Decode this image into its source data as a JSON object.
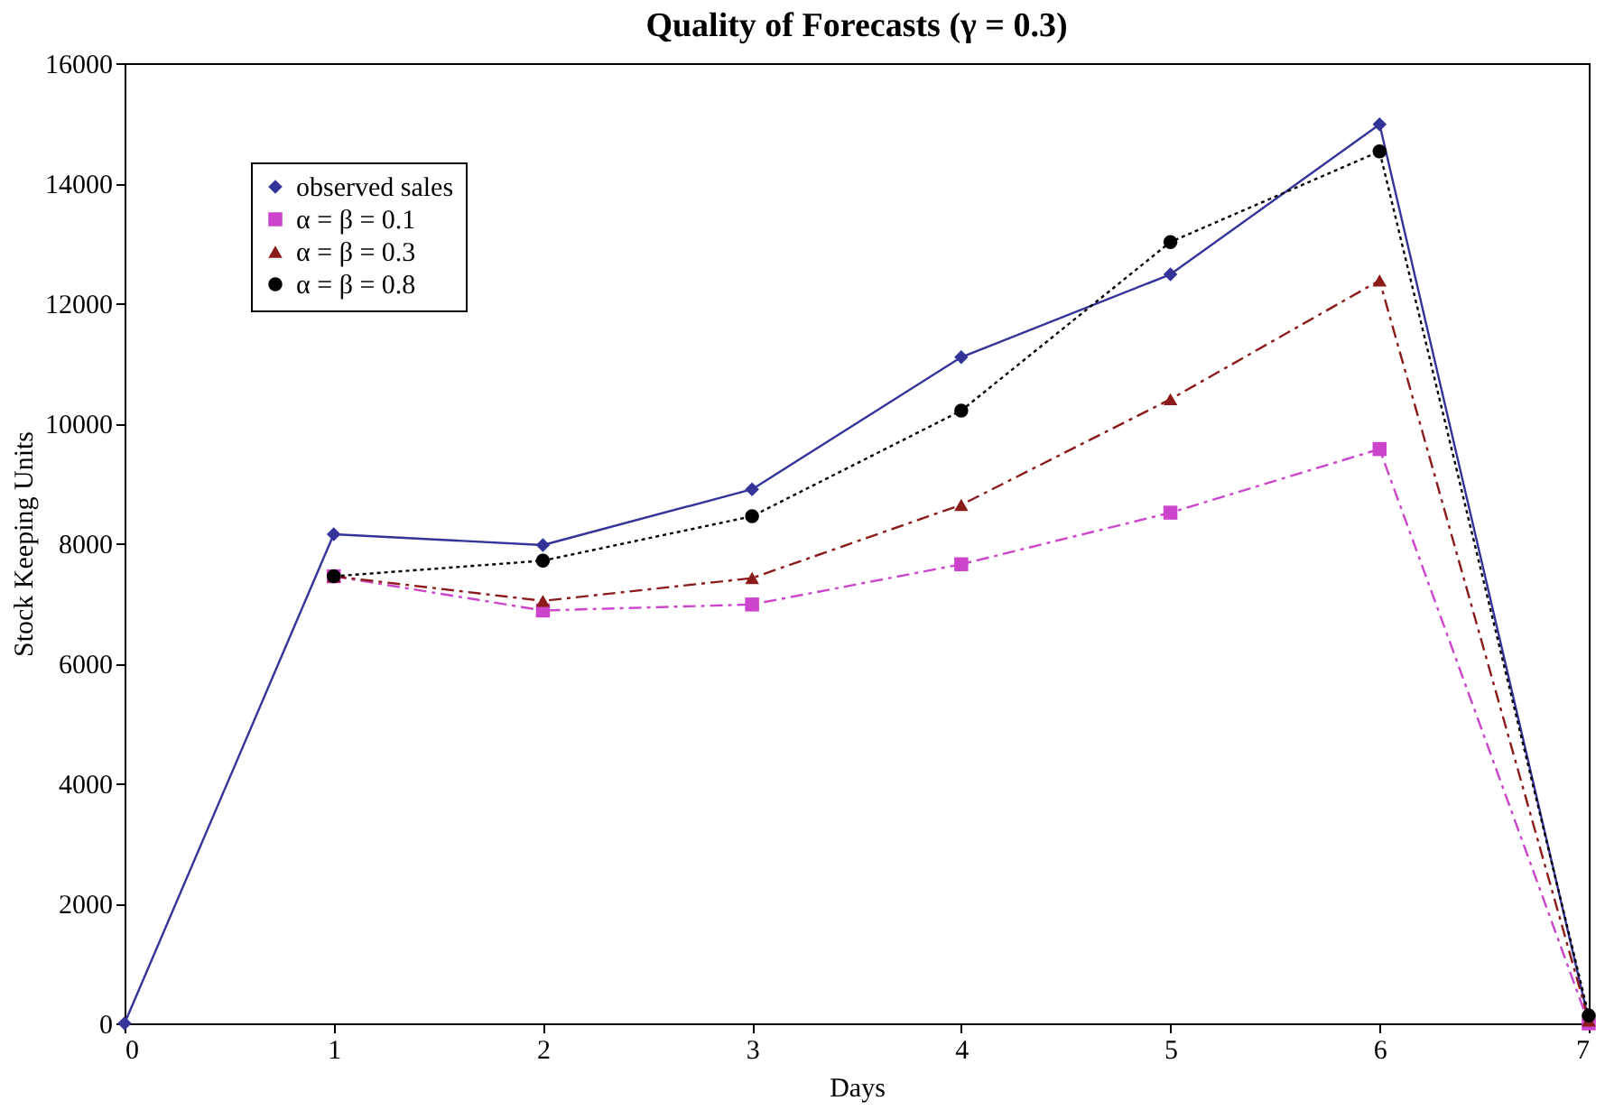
{
  "chart_data": {
    "type": "line",
    "title": "Quality of Forecasts (γ = 0.3)",
    "xlabel": "Days",
    "ylabel": "Stock Keeping Units",
    "xlim": [
      0,
      7
    ],
    "xticks": [
      0,
      1,
      2,
      3,
      4,
      5,
      6,
      7
    ],
    "ylim": [
      0,
      16000
    ],
    "yticks": [
      0,
      2000,
      4000,
      6000,
      8000,
      10000,
      12000,
      14000,
      16000
    ],
    "grid": false,
    "legend": "top left",
    "series": [
      {
        "name": "observed sales",
        "color": "#33339a",
        "marker": "diamond",
        "line_style": "solid",
        "x": [
          0,
          1,
          2,
          3,
          4,
          5,
          6,
          7
        ],
        "values": [
          0,
          8150,
          7970,
          8900,
          11100,
          12480,
          14980,
          50
        ]
      },
      {
        "name": "α = β = 0.1",
        "color": "#cc44cc",
        "marker": "square",
        "line_style": "dashed",
        "x": [
          1,
          2,
          3,
          4,
          5,
          6,
          7
        ],
        "values": [
          7450,
          6880,
          6980,
          7650,
          8510,
          9570,
          0
        ]
      },
      {
        "name": "α = β = 0.3",
        "color": "#8b1a1a",
        "marker": "triangle",
        "line_style": "dashed",
        "x": [
          1,
          2,
          3,
          4,
          5,
          6,
          7
        ],
        "values": [
          7450,
          7040,
          7420,
          8640,
          10400,
          12380,
          50
        ]
      },
      {
        "name": "α = β = 0.8",
        "color": "#000000",
        "marker": "circle",
        "line_style": "dotted",
        "x": [
          1,
          2,
          3,
          4,
          5,
          6,
          7
        ],
        "values": [
          7450,
          7710,
          8450,
          10210,
          13020,
          14530,
          130
        ]
      }
    ]
  }
}
